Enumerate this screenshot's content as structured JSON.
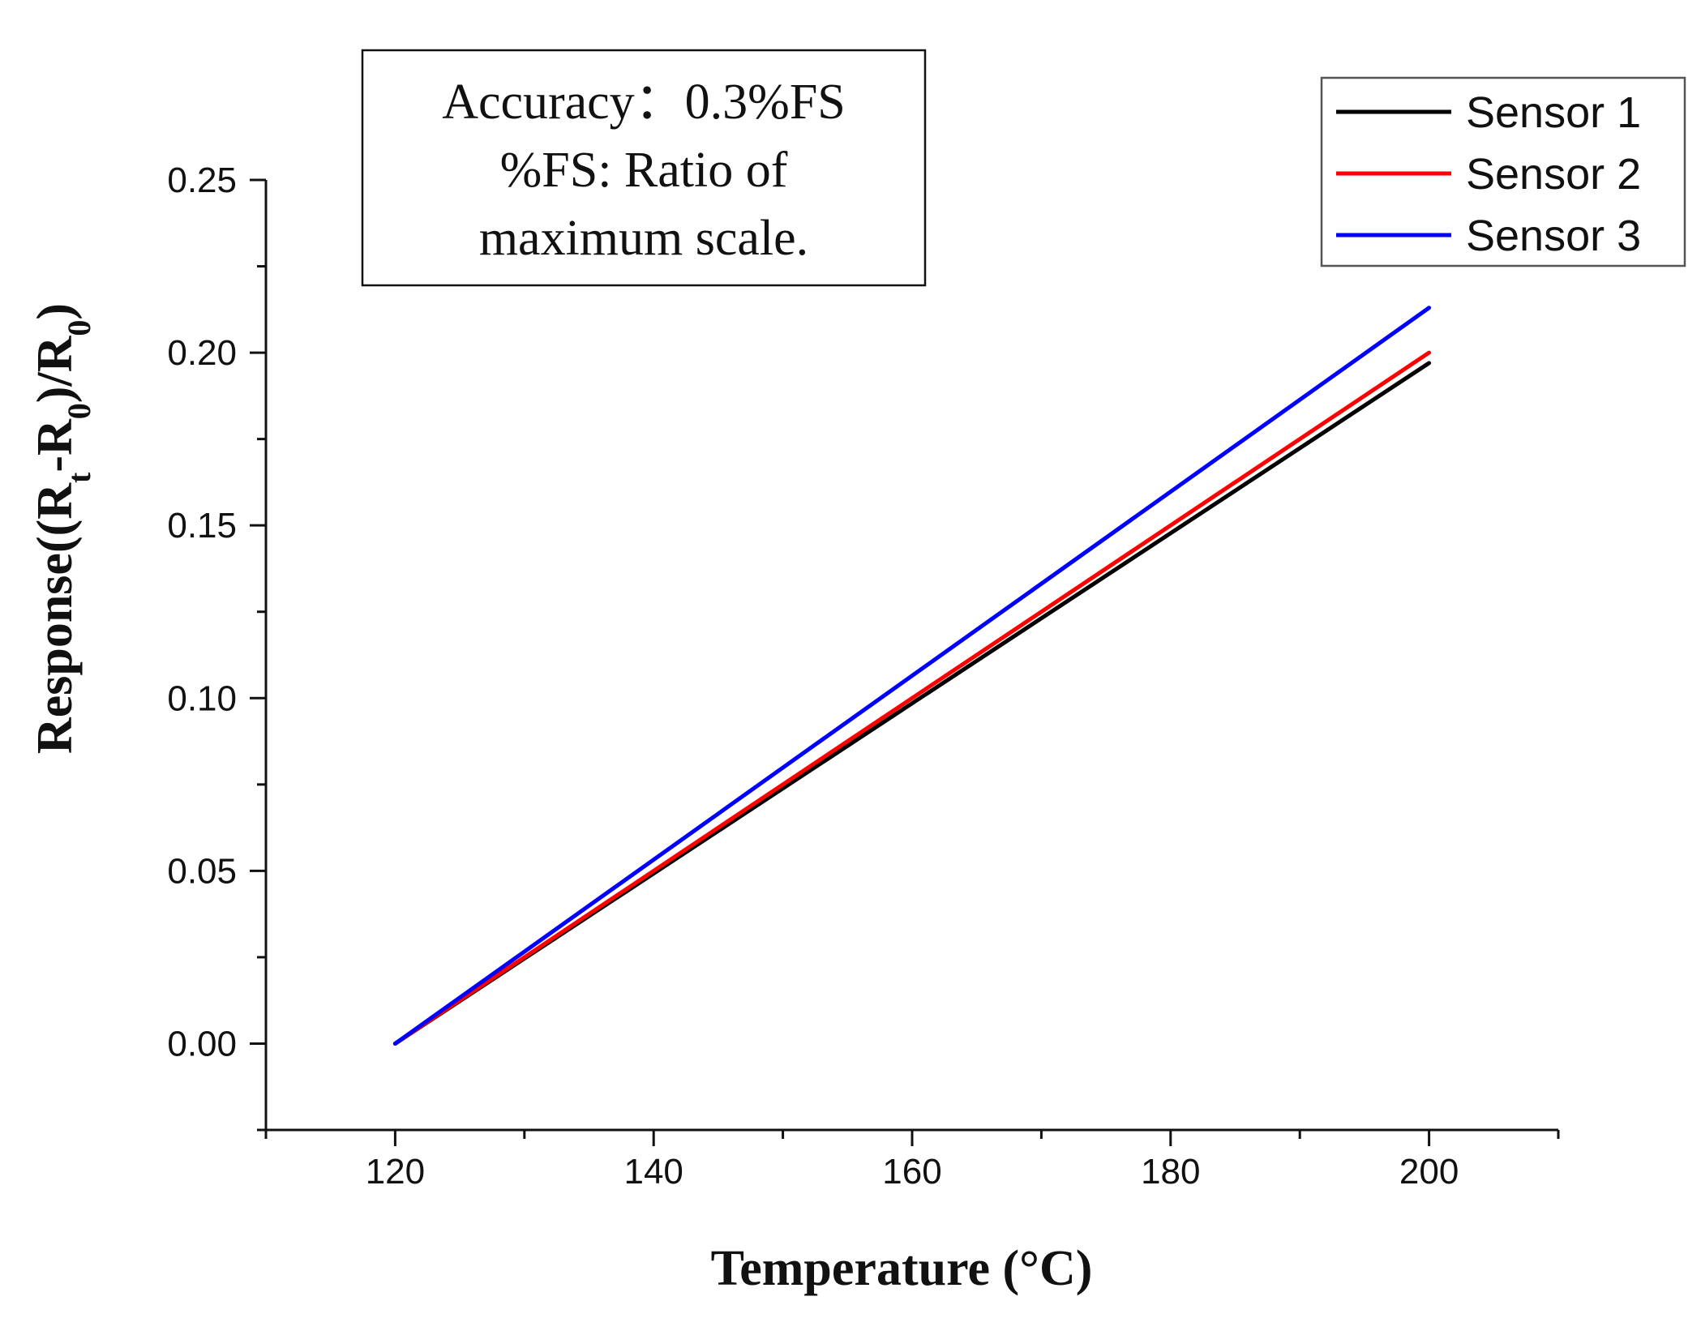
{
  "chart_data": {
    "type": "line",
    "title": "",
    "xlabel": "Temperature (°C)",
    "ylabel": {
      "main": "Response((R",
      "sub1": "t",
      "mid": "-R",
      "sub2": "0",
      "end": ")/R",
      "sub3": "0",
      "tail": ")"
    },
    "xlim": [
      110,
      210
    ],
    "ylim": [
      -0.025,
      0.25
    ],
    "x_ticks": [
      120,
      140,
      160,
      180,
      200
    ],
    "x_tick_labels": [
      "120",
      "140",
      "160",
      "180",
      "200"
    ],
    "y_ticks": [
      0.0,
      0.05,
      0.1,
      0.15,
      0.2,
      0.25
    ],
    "y_tick_labels": [
      "0.00",
      "0.05",
      "0.10",
      "0.15",
      "0.20",
      "0.25"
    ],
    "series": [
      {
        "name": "Sensor 1",
        "color": "#000000",
        "x": [
          120,
          200
        ],
        "y": [
          0.0,
          0.197
        ]
      },
      {
        "name": "Sensor 2",
        "color": "#ff0000",
        "x": [
          120,
          200
        ],
        "y": [
          0.0,
          0.2
        ]
      },
      {
        "name": "Sensor 3",
        "color": "#0000ff",
        "x": [
          120,
          200
        ],
        "y": [
          0.0,
          0.213
        ]
      }
    ],
    "legend": {
      "position": "top-right"
    },
    "annotation": {
      "lines": [
        "Accuracy：0.3%FS",
        "%FS: Ratio of",
        "maximum scale."
      ],
      "position": "top-center"
    }
  }
}
